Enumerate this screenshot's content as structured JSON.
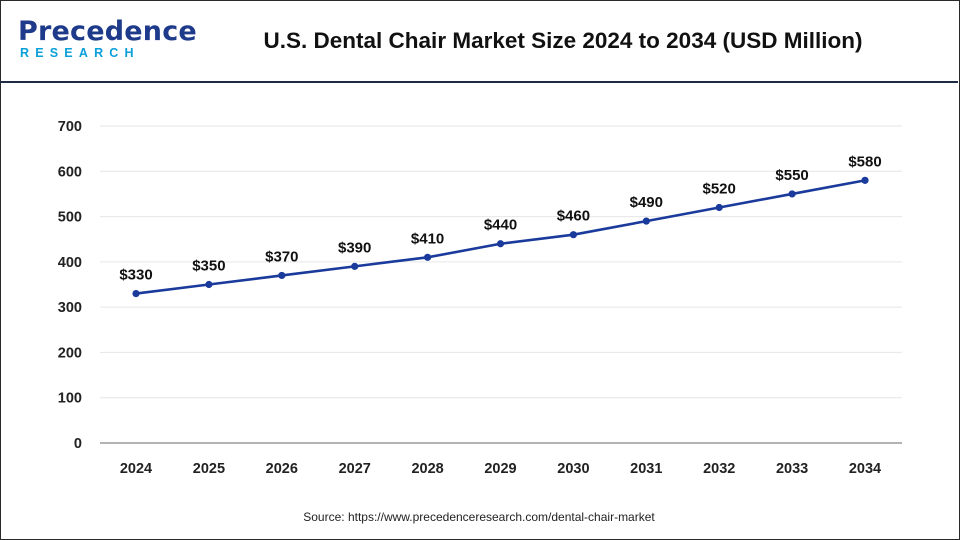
{
  "brand": {
    "name_main": "Precedence",
    "name_sub": "RESEARCH",
    "color_primary": "#1e3a8a",
    "color_secondary": "#0a9fd8"
  },
  "source_text": "Source: https://www.precedenceresearch.com/dental-chair-market",
  "chart_data": {
    "type": "line",
    "title": "U.S. Dental Chair Market Size 2024 to 2034 (USD Million)",
    "xlabel": "",
    "ylabel": "",
    "categories": [
      "2024",
      "2025",
      "2026",
      "2027",
      "2028",
      "2029",
      "2030",
      "2031",
      "2032",
      "2033",
      "2034"
    ],
    "series": [
      {
        "name": "Market Size (USD Million)",
        "values": [
          330,
          350,
          370,
          390,
          410,
          440,
          460,
          490,
          520,
          550,
          580
        ],
        "labels": [
          "$330",
          "$350",
          "$370",
          "$390",
          "$410",
          "$440",
          "$460",
          "$490",
          "$520",
          "$550",
          "$580"
        ],
        "color": "#1a3a9c"
      }
    ],
    "ylim": [
      0,
      700
    ],
    "yticks": [
      0,
      100,
      200,
      300,
      400,
      500,
      600,
      700
    ],
    "grid": true,
    "legend": "none"
  }
}
